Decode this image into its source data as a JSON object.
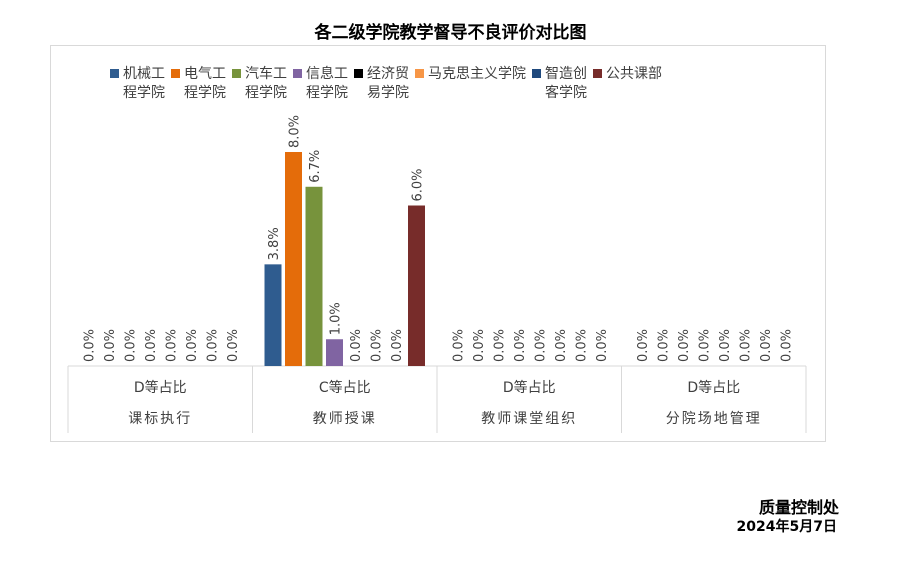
{
  "chart_data": {
    "type": "bar",
    "title": "各二级学院教学督导不良评价对比图",
    "categories": [
      {
        "metric": "D等占比",
        "area": "课标执行"
      },
      {
        "metric": "C等占比",
        "area": "教师授课"
      },
      {
        "metric": "D等占比",
        "area": "教师课堂组织"
      },
      {
        "metric": "D等占比",
        "area": "分院场地管理"
      }
    ],
    "series": [
      {
        "name": "机械工程学院",
        "legend_lines": [
          "机械工",
          "程学院"
        ],
        "color": "#2f5c8f",
        "values": [
          0,
          3.8,
          0,
          0
        ]
      },
      {
        "name": "电气工程学院",
        "legend_lines": [
          "电气工",
          "程学院"
        ],
        "color": "#e46c0a",
        "values": [
          0,
          8.0,
          0,
          0
        ]
      },
      {
        "name": "汽车工程学院",
        "legend_lines": [
          "汽车工",
          "程学院"
        ],
        "color": "#77933c",
        "values": [
          0,
          6.7,
          0,
          0
        ]
      },
      {
        "name": "信息工程学院",
        "legend_lines": [
          "信息工",
          "程学院"
        ],
        "color": "#8064a2",
        "values": [
          0,
          1.0,
          0,
          0
        ]
      },
      {
        "name": "经济贸易学院",
        "legend_lines": [
          "经济贸",
          "易学院"
        ],
        "color": "#000000",
        "values": [
          0,
          0,
          0,
          0
        ]
      },
      {
        "name": "马克思主义学院",
        "legend_lines": [
          "马克思主义学院",
          ""
        ],
        "color": "#f79646",
        "values": [
          0,
          0,
          0,
          0
        ]
      },
      {
        "name": "智造创客学院",
        "legend_lines": [
          "智造创",
          "客学院"
        ],
        "color": "#1f497d",
        "values": [
          0,
          0,
          0,
          0
        ]
      },
      {
        "name": "公共课部",
        "legend_lines": [
          "公共课部",
          ""
        ],
        "color": "#772c2a",
        "values": [
          0,
          6.0,
          0,
          0
        ]
      }
    ],
    "unit": "%",
    "ylim": [
      0,
      8.5
    ],
    "grid": false,
    "legend": "top"
  },
  "footer": {
    "dept": "质量控制处",
    "date": "2024年5月7日"
  }
}
